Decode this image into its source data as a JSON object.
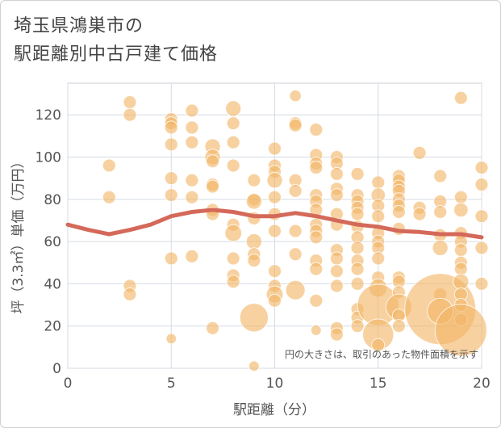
{
  "title_lines": [
    "埼玉県鴻巣市の",
    "駅距離別中古戸建て価格"
  ],
  "colors": {
    "bubble": "#f2b566",
    "trend": "#d4695a",
    "grid": "#d5dbe3",
    "plot_border": "#c8cdd3"
  },
  "chart_data": {
    "type": "scatter",
    "xlabel": "駅距離（分）",
    "ylabel": "坪（3.3㎡）単価（万円）",
    "xlim": [
      0,
      20
    ],
    "ylim": [
      0,
      135
    ],
    "xticks": [
      0,
      5,
      10,
      15,
      20
    ],
    "yticks": [
      0,
      20,
      40,
      60,
      80,
      100,
      120
    ],
    "grid": true,
    "annotation": "円の大きさは、取引のあった物件面積を示す",
    "trend": {
      "x": [
        0,
        1,
        2,
        3,
        4,
        5,
        6,
        7,
        8,
        9,
        10,
        11,
        12,
        13,
        14,
        15,
        16,
        17,
        18,
        19,
        20
      ],
      "y": [
        68,
        65.5,
        63.5,
        65.5,
        68,
        72,
        74,
        75,
        74,
        72,
        72,
        73.5,
        72,
        70,
        68,
        67,
        65,
        64.5,
        63.5,
        63.5,
        62
      ]
    },
    "points": [
      {
        "x": 2,
        "y": 96,
        "s": 1
      },
      {
        "x": 2,
        "y": 81,
        "s": 1
      },
      {
        "x": 3,
        "y": 126,
        "s": 1
      },
      {
        "x": 3,
        "y": 120,
        "s": 1
      },
      {
        "x": 3,
        "y": 39,
        "s": 1
      },
      {
        "x": 3,
        "y": 35,
        "s": 1
      },
      {
        "x": 5,
        "y": 118,
        "s": 1
      },
      {
        "x": 5,
        "y": 116,
        "s": 1
      },
      {
        "x": 5,
        "y": 114,
        "s": 1
      },
      {
        "x": 5,
        "y": 106,
        "s": 1
      },
      {
        "x": 5,
        "y": 90,
        "s": 1
      },
      {
        "x": 5,
        "y": 82,
        "s": 1
      },
      {
        "x": 5,
        "y": 52,
        "s": 1
      },
      {
        "x": 5,
        "y": 14,
        "s": 0.8
      },
      {
        "x": 6,
        "y": 122,
        "s": 1
      },
      {
        "x": 6,
        "y": 114,
        "s": 1
      },
      {
        "x": 6,
        "y": 107,
        "s": 1
      },
      {
        "x": 6,
        "y": 89,
        "s": 1
      },
      {
        "x": 6,
        "y": 81,
        "s": 1
      },
      {
        "x": 6,
        "y": 53,
        "s": 1
      },
      {
        "x": 7,
        "y": 105,
        "s": 1.2
      },
      {
        "x": 7,
        "y": 100,
        "s": 1.2
      },
      {
        "x": 7,
        "y": 98,
        "s": 1
      },
      {
        "x": 7,
        "y": 87,
        "s": 1
      },
      {
        "x": 7,
        "y": 86,
        "s": 1
      },
      {
        "x": 7,
        "y": 75,
        "s": 1
      },
      {
        "x": 7,
        "y": 73,
        "s": 1
      },
      {
        "x": 7,
        "y": 19,
        "s": 1
      },
      {
        "x": 8,
        "y": 123,
        "s": 1.2
      },
      {
        "x": 8,
        "y": 116,
        "s": 1
      },
      {
        "x": 8,
        "y": 107,
        "s": 1
      },
      {
        "x": 8,
        "y": 96,
        "s": 1
      },
      {
        "x": 8,
        "y": 68,
        "s": 1
      },
      {
        "x": 8,
        "y": 64,
        "s": 1.3
      },
      {
        "x": 8,
        "y": 52,
        "s": 1
      },
      {
        "x": 8,
        "y": 44,
        "s": 1
      },
      {
        "x": 8,
        "y": 41,
        "s": 1
      },
      {
        "x": 9,
        "y": 89,
        "s": 1
      },
      {
        "x": 9,
        "y": 80,
        "s": 1
      },
      {
        "x": 9,
        "y": 79,
        "s": 1.2
      },
      {
        "x": 9,
        "y": 71,
        "s": 1
      },
      {
        "x": 9,
        "y": 60,
        "s": 1.2
      },
      {
        "x": 9,
        "y": 54,
        "s": 1
      },
      {
        "x": 9,
        "y": 51,
        "s": 1
      },
      {
        "x": 9,
        "y": 24,
        "s": 2.2
      },
      {
        "x": 9,
        "y": 1,
        "s": 0.8
      },
      {
        "x": 10,
        "y": 104,
        "s": 1
      },
      {
        "x": 10,
        "y": 96,
        "s": 1
      },
      {
        "x": 10,
        "y": 93,
        "s": 1
      },
      {
        "x": 10,
        "y": 89,
        "s": 1.2
      },
      {
        "x": 10,
        "y": 81,
        "s": 1
      },
      {
        "x": 10,
        "y": 73,
        "s": 1
      },
      {
        "x": 10,
        "y": 65,
        "s": 1
      },
      {
        "x": 10,
        "y": 46,
        "s": 1
      },
      {
        "x": 10,
        "y": 39,
        "s": 1
      },
      {
        "x": 10,
        "y": 35,
        "s": 1.3
      },
      {
        "x": 10,
        "y": 32,
        "s": 1
      },
      {
        "x": 11,
        "y": 129,
        "s": 0.9
      },
      {
        "x": 11,
        "y": 116,
        "s": 1
      },
      {
        "x": 11,
        "y": 115,
        "s": 1
      },
      {
        "x": 11,
        "y": 89,
        "s": 1
      },
      {
        "x": 11,
        "y": 84,
        "s": 1
      },
      {
        "x": 11,
        "y": 65,
        "s": 1
      },
      {
        "x": 11,
        "y": 54,
        "s": 1
      },
      {
        "x": 11,
        "y": 37,
        "s": 1.5
      },
      {
        "x": 12,
        "y": 113,
        "s": 1
      },
      {
        "x": 12,
        "y": 101,
        "s": 1
      },
      {
        "x": 12,
        "y": 97,
        "s": 1
      },
      {
        "x": 12,
        "y": 95,
        "s": 1
      },
      {
        "x": 12,
        "y": 82,
        "s": 1
      },
      {
        "x": 12,
        "y": 79,
        "s": 1
      },
      {
        "x": 12,
        "y": 75,
        "s": 1
      },
      {
        "x": 12,
        "y": 68,
        "s": 1
      },
      {
        "x": 12,
        "y": 65,
        "s": 1
      },
      {
        "x": 12,
        "y": 62,
        "s": 1
      },
      {
        "x": 12,
        "y": 51,
        "s": 1
      },
      {
        "x": 12,
        "y": 47,
        "s": 1
      },
      {
        "x": 12,
        "y": 32,
        "s": 1
      },
      {
        "x": 12,
        "y": 18,
        "s": 0.8
      },
      {
        "x": 13,
        "y": 100,
        "s": 1
      },
      {
        "x": 13,
        "y": 97,
        "s": 1
      },
      {
        "x": 13,
        "y": 92,
        "s": 1
      },
      {
        "x": 13,
        "y": 85,
        "s": 1
      },
      {
        "x": 13,
        "y": 82,
        "s": 1
      },
      {
        "x": 13,
        "y": 73,
        "s": 1
      },
      {
        "x": 13,
        "y": 68,
        "s": 1
      },
      {
        "x": 13,
        "y": 56,
        "s": 1
      },
      {
        "x": 13,
        "y": 52,
        "s": 1
      },
      {
        "x": 13,
        "y": 46,
        "s": 1
      },
      {
        "x": 13,
        "y": 39,
        "s": 1
      },
      {
        "x": 13,
        "y": 19,
        "s": 1
      },
      {
        "x": 13,
        "y": 16,
        "s": 1
      },
      {
        "x": 14,
        "y": 92,
        "s": 1
      },
      {
        "x": 14,
        "y": 82,
        "s": 1
      },
      {
        "x": 14,
        "y": 79,
        "s": 1
      },
      {
        "x": 14,
        "y": 76,
        "s": 1
      },
      {
        "x": 14,
        "y": 73,
        "s": 1
      },
      {
        "x": 14,
        "y": 67,
        "s": 1
      },
      {
        "x": 14,
        "y": 62,
        "s": 1
      },
      {
        "x": 14,
        "y": 57,
        "s": 1
      },
      {
        "x": 14,
        "y": 51,
        "s": 1
      },
      {
        "x": 14,
        "y": 47,
        "s": 1
      },
      {
        "x": 14,
        "y": 40,
        "s": 1
      },
      {
        "x": 14,
        "y": 28,
        "s": 1
      },
      {
        "x": 14,
        "y": 24,
        "s": 1
      },
      {
        "x": 14,
        "y": 20,
        "s": 1
      },
      {
        "x": 15,
        "y": 88,
        "s": 1
      },
      {
        "x": 15,
        "y": 82,
        "s": 1.1
      },
      {
        "x": 15,
        "y": 77,
        "s": 1
      },
      {
        "x": 15,
        "y": 72,
        "s": 1
      },
      {
        "x": 15,
        "y": 64,
        "s": 1
      },
      {
        "x": 15,
        "y": 60,
        "s": 1
      },
      {
        "x": 15,
        "y": 57,
        "s": 1
      },
      {
        "x": 15,
        "y": 52,
        "s": 1
      },
      {
        "x": 15,
        "y": 43,
        "s": 1
      },
      {
        "x": 15,
        "y": 38,
        "s": 1.4
      },
      {
        "x": 15,
        "y": 30,
        "s": 3.2
      },
      {
        "x": 15,
        "y": 16,
        "s": 2.4
      },
      {
        "x": 15,
        "y": 11,
        "s": 1
      },
      {
        "x": 16,
        "y": 91,
        "s": 1
      },
      {
        "x": 16,
        "y": 89,
        "s": 1
      },
      {
        "x": 16,
        "y": 86,
        "s": 1
      },
      {
        "x": 16,
        "y": 84,
        "s": 1
      },
      {
        "x": 16,
        "y": 80,
        "s": 1
      },
      {
        "x": 16,
        "y": 77,
        "s": 1
      },
      {
        "x": 16,
        "y": 74,
        "s": 1
      },
      {
        "x": 16,
        "y": 66,
        "s": 1
      },
      {
        "x": 16,
        "y": 43,
        "s": 1
      },
      {
        "x": 16,
        "y": 41,
        "s": 1
      },
      {
        "x": 16,
        "y": 36,
        "s": 1
      },
      {
        "x": 16,
        "y": 29,
        "s": 2
      },
      {
        "x": 16,
        "y": 25,
        "s": 1
      },
      {
        "x": 16,
        "y": 20,
        "s": 1
      },
      {
        "x": 17,
        "y": 102,
        "s": 1
      },
      {
        "x": 17,
        "y": 76,
        "s": 1
      },
      {
        "x": 17,
        "y": 73,
        "s": 1
      },
      {
        "x": 18,
        "y": 91,
        "s": 1
      },
      {
        "x": 18,
        "y": 79,
        "s": 1
      },
      {
        "x": 18,
        "y": 74,
        "s": 1
      },
      {
        "x": 18,
        "y": 63,
        "s": 1
      },
      {
        "x": 18,
        "y": 57,
        "s": 1.2
      },
      {
        "x": 18,
        "y": 35,
        "s": 1
      },
      {
        "x": 18,
        "y": 28,
        "s": 5.5
      },
      {
        "x": 18,
        "y": 27,
        "s": 2
      },
      {
        "x": 19,
        "y": 128,
        "s": 1
      },
      {
        "x": 19,
        "y": 81,
        "s": 1
      },
      {
        "x": 19,
        "y": 75,
        "s": 1.1
      },
      {
        "x": 19,
        "y": 64,
        "s": 1
      },
      {
        "x": 19,
        "y": 60,
        "s": 1
      },
      {
        "x": 19,
        "y": 56,
        "s": 1
      },
      {
        "x": 19,
        "y": 50,
        "s": 1
      },
      {
        "x": 19,
        "y": 47,
        "s": 1
      },
      {
        "x": 19,
        "y": 41,
        "s": 1.2
      },
      {
        "x": 19,
        "y": 35,
        "s": 1
      },
      {
        "x": 19,
        "y": 30,
        "s": 1
      },
      {
        "x": 19,
        "y": 23,
        "s": 1
      },
      {
        "x": 19,
        "y": 18,
        "s": 4
      },
      {
        "x": 20,
        "y": 95,
        "s": 1
      },
      {
        "x": 20,
        "y": 87,
        "s": 1
      },
      {
        "x": 20,
        "y": 72,
        "s": 1
      },
      {
        "x": 20,
        "y": 57,
        "s": 1
      },
      {
        "x": 20,
        "y": 40,
        "s": 1
      }
    ]
  }
}
